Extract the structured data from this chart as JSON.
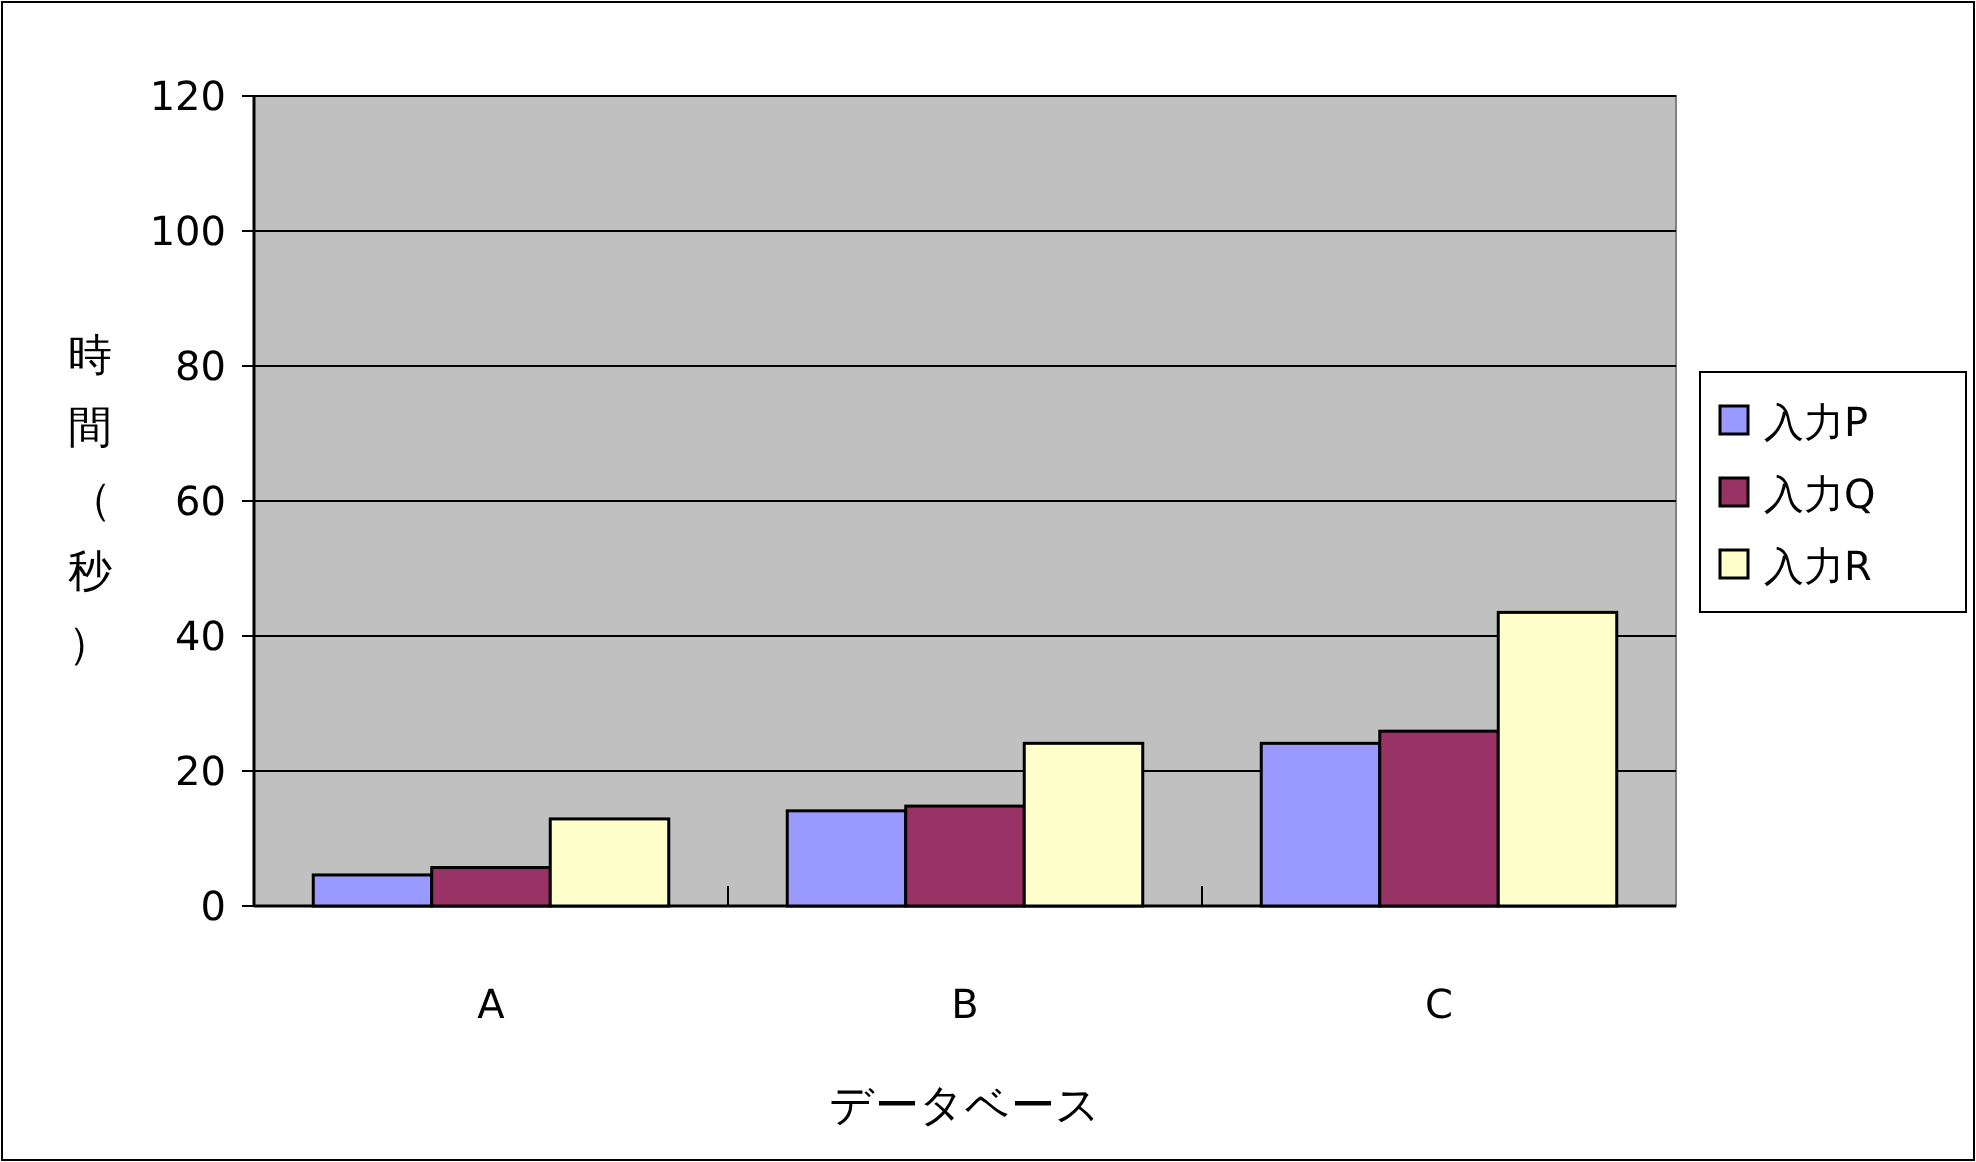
{
  "chart_data": {
    "type": "bar",
    "xlabel": "データベース",
    "ylabel": "時間（秒）",
    "categories": [
      "A",
      "B",
      "C"
    ],
    "series": [
      {
        "name": "入力P",
        "color": "#9999ff",
        "values": [
          4.6,
          14.1,
          24.1
        ]
      },
      {
        "name": "入力Q",
        "color": "#993366",
        "values": [
          5.7,
          14.8,
          25.9
        ]
      },
      {
        "name": "入力R",
        "color": "#ffffcc",
        "values": [
          12.9,
          24.1,
          43.5
        ]
      }
    ],
    "ylim": [
      0,
      120
    ],
    "yticks": [
      0,
      20,
      40,
      60,
      80,
      100,
      120
    ],
    "grid": "y",
    "legend": "right"
  }
}
